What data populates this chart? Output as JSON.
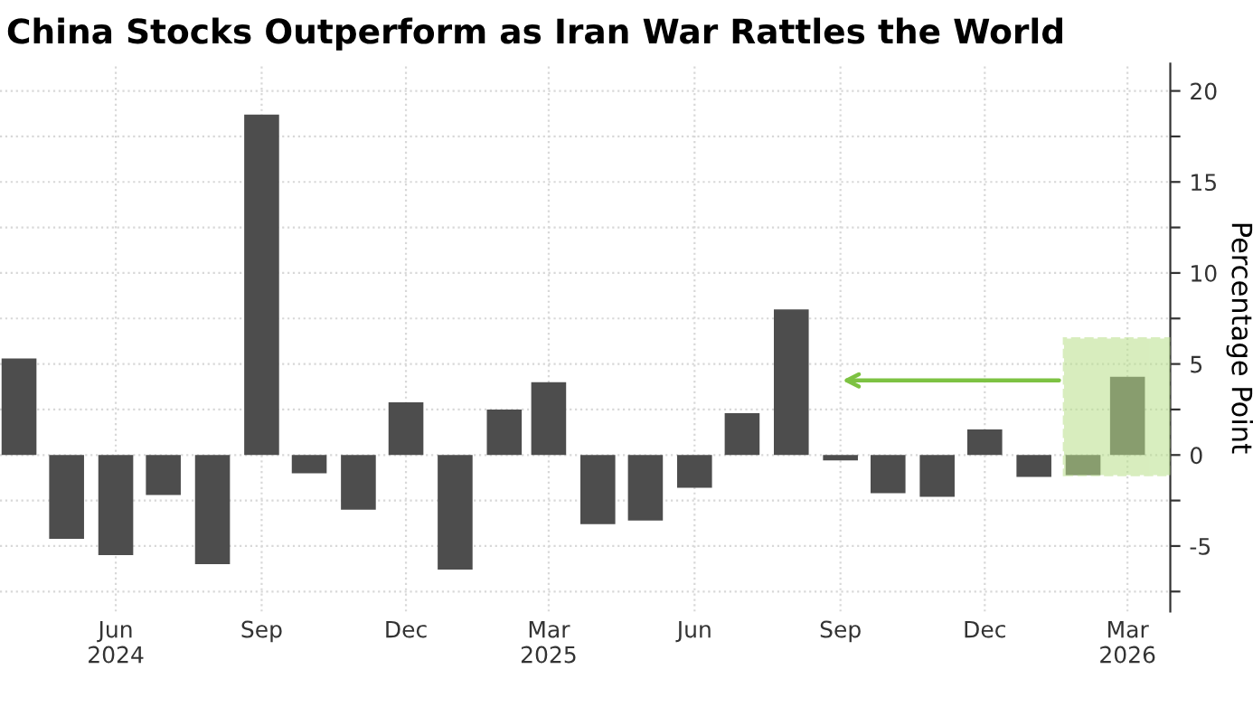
{
  "chart_data": {
    "type": "bar",
    "title": "China Stocks Outperform as Iran War Rattles the World",
    "ylabel": "Percentage Point",
    "x": [
      "2024-04",
      "2024-05",
      "2024-06",
      "2024-07",
      "2024-08",
      "2024-09",
      "2024-10",
      "2024-11",
      "2024-12",
      "2025-01",
      "2025-02",
      "2025-03",
      "2025-04",
      "2025-05",
      "2025-06",
      "2025-07",
      "2025-08",
      "2025-09",
      "2025-10",
      "2025-11",
      "2025-12",
      "2026-01",
      "2026-02",
      "2026-03"
    ],
    "series": [
      {
        "color": "#4d4d4d",
        "values": [
          5.3,
          -4.6,
          -5.5,
          -2.2,
          -6.0,
          18.7,
          -1.0,
          -3.0,
          2.9,
          -6.3,
          2.5,
          4.0,
          -3.8,
          -3.6,
          -1.8,
          2.3,
          8.0,
          -0.3,
          -2.1,
          -2.3,
          1.4,
          -1.2,
          -1.1,
          4.3
        ]
      }
    ],
    "xlim": [
      "2024-03-20",
      "2026-03-28"
    ],
    "xticks": [
      {
        "value": "2024-06",
        "label": "Jun\n2024"
      },
      {
        "value": "2024-09",
        "label": "Sep"
      },
      {
        "value": "2024-12",
        "label": "Dec"
      },
      {
        "value": "2025-03",
        "label": "Mar\n2025"
      },
      {
        "value": "2025-06",
        "label": "Jun"
      },
      {
        "value": "2025-09",
        "label": "Sep"
      },
      {
        "value": "2025-12",
        "label": "Dec"
      },
      {
        "value": "2026-03",
        "label": "Mar\n2026"
      }
    ],
    "ylim": [
      -8.6,
      21.5
    ],
    "yticks": [
      {
        "value": -7.5,
        "label": null
      },
      -5,
      {
        "value": -2.5,
        "label": null
      },
      0,
      {
        "value": 2.5,
        "label": null
      },
      5,
      {
        "value": 7.5,
        "label": null
      },
      10,
      {
        "value": 12.5,
        "label": null
      },
      15,
      {
        "value": 17.5,
        "label": null
      },
      20
    ],
    "grid": true
  }
}
